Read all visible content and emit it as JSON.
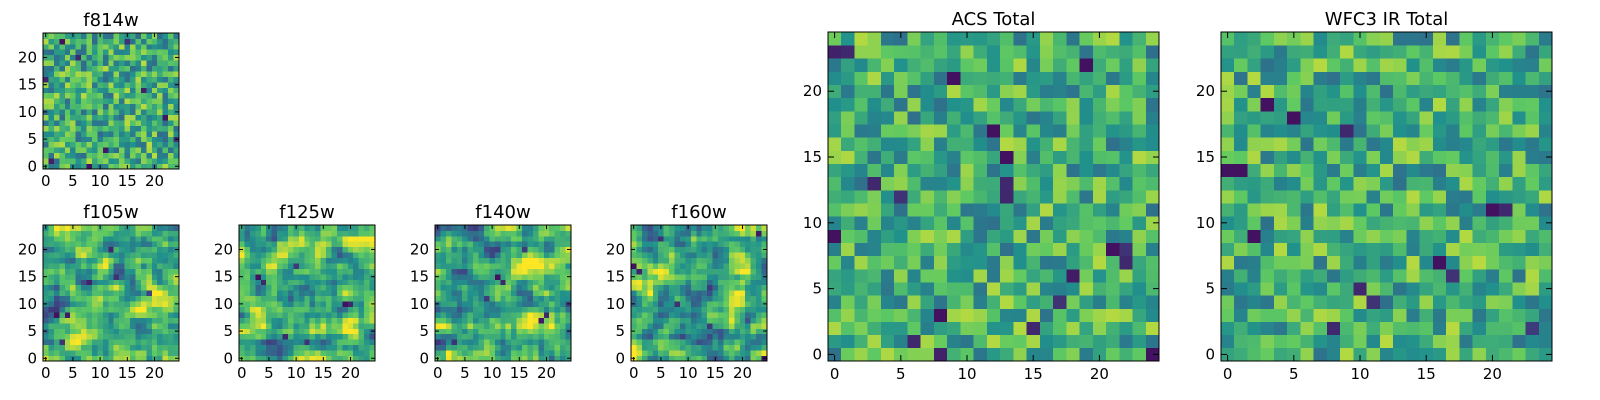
{
  "figure": {
    "background": "#ffffff"
  },
  "colormap": {
    "name": "viridis",
    "stops": [
      "#440154",
      "#3b528b",
      "#21918c",
      "#5ec962",
      "#fde725"
    ]
  },
  "chart_data": [
    {
      "type": "heatmap",
      "title": "f814w",
      "grid_size": [
        25,
        25
      ],
      "xticks": [
        0,
        5,
        10,
        15,
        20
      ],
      "yticks": [
        0,
        5,
        10,
        15,
        20
      ],
      "xlim": [
        -0.5,
        24.5
      ],
      "ylim": [
        -0.5,
        24.5
      ],
      "colormap": "viridis",
      "value_range": [
        0,
        1
      ],
      "texture": "fine noisy pixel field, mostly green/yellow with scattered dark blue/purple pixels",
      "seed": 814,
      "smoothing": 0,
      "mean": 0.62,
      "spread": 0.16,
      "outliers": [
        [
          3,
          23,
          0.05
        ],
        [
          11,
          3,
          0.08
        ],
        [
          18,
          14,
          0.1
        ],
        [
          6,
          20,
          0.12
        ],
        [
          22,
          9,
          0.07
        ],
        [
          1,
          1,
          0.1
        ],
        [
          8,
          0,
          0.05
        ],
        [
          24,
          5,
          0.15
        ],
        [
          15,
          23,
          0.15
        ],
        [
          0,
          16,
          0.12
        ]
      ]
    },
    {
      "type": "heatmap",
      "title": "f105w",
      "grid_size": [
        25,
        25
      ],
      "xticks": [
        0,
        5,
        10,
        15,
        20
      ],
      "yticks": [
        0,
        5,
        10,
        15,
        20
      ],
      "xlim": [
        -0.5,
        24.5
      ],
      "ylim": [
        -0.5,
        24.5
      ],
      "colormap": "viridis",
      "value_range": [
        0,
        1
      ],
      "texture": "smooth blotchy field, yellow-green with teal/purple patches",
      "seed": 105,
      "smoothing": 1,
      "mean": 0.64,
      "spread": 0.16,
      "outliers": [
        [
          2,
          8,
          0.05
        ],
        [
          4,
          8,
          0.08
        ],
        [
          8,
          14,
          0.1
        ],
        [
          13,
          15,
          0.15
        ],
        [
          3,
          3,
          0.15
        ],
        [
          19,
          12,
          0.2
        ],
        [
          12,
          20,
          0.12
        ]
      ]
    },
    {
      "type": "heatmap",
      "title": "f125w",
      "grid_size": [
        25,
        25
      ],
      "xticks": [
        0,
        5,
        10,
        15,
        20
      ],
      "yticks": [
        0,
        5,
        10,
        15,
        20
      ],
      "xlim": [
        -0.5,
        24.5
      ],
      "ylim": [
        -0.5,
        24.5
      ],
      "colormap": "viridis",
      "value_range": [
        0,
        1
      ],
      "texture": "smooth blotchy field with dark spots around (3,15) and (19,10)",
      "seed": 125,
      "smoothing": 1,
      "mean": 0.64,
      "spread": 0.16,
      "outliers": [
        [
          3,
          15,
          0.05
        ],
        [
          4,
          14,
          0.12
        ],
        [
          19,
          10,
          0.05
        ],
        [
          20,
          10,
          0.12
        ],
        [
          8,
          4,
          0.12
        ],
        [
          12,
          3,
          0.15
        ],
        [
          10,
          17,
          0.18
        ]
      ]
    },
    {
      "type": "heatmap",
      "title": "f140w",
      "grid_size": [
        25,
        25
      ],
      "xticks": [
        0,
        5,
        10,
        15,
        20
      ],
      "yticks": [
        0,
        5,
        10,
        15,
        20
      ],
      "xlim": [
        -0.5,
        24.5
      ],
      "ylim": [
        -0.5,
        24.5
      ],
      "colormap": "viridis",
      "value_range": [
        0,
        1
      ],
      "texture": "smooth field with dark cores near (11,15) and (19,7)",
      "seed": 140,
      "smoothing": 1,
      "mean": 0.62,
      "spread": 0.17,
      "outliers": [
        [
          11,
          15,
          0.05
        ],
        [
          12,
          14,
          0.12
        ],
        [
          19,
          7,
          0.08
        ],
        [
          20,
          8,
          0.12
        ],
        [
          3,
          3,
          0.15
        ],
        [
          9,
          11,
          0.18
        ],
        [
          16,
          20,
          0.18
        ]
      ]
    },
    {
      "type": "heatmap",
      "title": "f160w",
      "grid_size": [
        25,
        25
      ],
      "xticks": [
        0,
        5,
        10,
        15,
        20
      ],
      "yticks": [
        0,
        5,
        10,
        15,
        20
      ],
      "xlim": [
        -0.5,
        24.5
      ],
      "ylim": [
        -0.5,
        24.5
      ],
      "colormap": "viridis",
      "value_range": [
        0,
        1
      ],
      "texture": "smooth mottled field, dark edge pixels at corners",
      "seed": 160,
      "smoothing": 1,
      "mean": 0.6,
      "spread": 0.17,
      "outliers": [
        [
          0,
          17,
          0.05
        ],
        [
          1,
          16,
          0.1
        ],
        [
          24,
          0,
          0.05
        ],
        [
          23,
          23,
          0.08
        ],
        [
          8,
          10,
          0.15
        ],
        [
          14,
          6,
          0.18
        ],
        [
          5,
          22,
          0.15
        ]
      ]
    },
    {
      "type": "heatmap",
      "title": "ACS Total",
      "grid_size": [
        25,
        25
      ],
      "xticks": [
        0,
        5,
        10,
        15,
        20
      ],
      "yticks": [
        0,
        5,
        10,
        15,
        20
      ],
      "xlim": [
        -0.5,
        24.5
      ],
      "ylim": [
        -0.5,
        24.5
      ],
      "colormap": "viridis",
      "value_range": [
        0,
        1
      ],
      "texture": "coarse noisy pixel field, green/yellow with scattered dark pixels",
      "seed": 2001,
      "smoothing": 0,
      "mean": 0.63,
      "spread": 0.15,
      "outliers": [
        [
          0,
          23,
          0.1
        ],
        [
          1,
          23,
          0.12
        ],
        [
          9,
          21,
          0.05
        ],
        [
          19,
          22,
          0.05
        ],
        [
          12,
          17,
          0.05
        ],
        [
          13,
          15,
          0.05
        ],
        [
          3,
          13,
          0.12
        ],
        [
          13,
          13,
          0.12
        ],
        [
          13,
          12,
          0.12
        ],
        [
          0,
          9,
          0.05
        ],
        [
          21,
          8,
          0.05
        ],
        [
          22,
          8,
          0.15
        ],
        [
          22,
          7,
          0.12
        ],
        [
          8,
          3,
          0.05
        ],
        [
          8,
          0,
          0.1
        ],
        [
          24,
          0,
          0.05
        ],
        [
          18,
          6,
          0.08
        ],
        [
          6,
          1,
          0.12
        ],
        [
          15,
          2,
          0.12
        ],
        [
          17,
          4,
          0.15
        ],
        [
          5,
          12,
          0.15
        ]
      ]
    },
    {
      "type": "heatmap",
      "title": "WFC3 IR Total",
      "grid_size": [
        25,
        25
      ],
      "xticks": [
        0,
        5,
        10,
        15,
        20
      ],
      "yticks": [
        0,
        5,
        10,
        15,
        20
      ],
      "xlim": [
        -0.5,
        24.5
      ],
      "ylim": [
        -0.5,
        24.5
      ],
      "colormap": "viridis",
      "value_range": [
        0,
        1
      ],
      "texture": "coarse noisy pixel field, yellow/green with scattered dark pixels",
      "seed": 3001,
      "smoothing": 0,
      "mean": 0.63,
      "spread": 0.15,
      "outliers": [
        [
          3,
          19,
          0.05
        ],
        [
          5,
          18,
          0.05
        ],
        [
          0,
          14,
          0.05
        ],
        [
          1,
          14,
          0.05
        ],
        [
          2,
          9,
          0.05
        ],
        [
          16,
          7,
          0.05
        ],
        [
          20,
          11,
          0.05
        ],
        [
          21,
          11,
          0.12
        ],
        [
          10,
          5,
          0.12
        ],
        [
          11,
          4,
          0.15
        ],
        [
          8,
          2,
          0.12
        ],
        [
          17,
          6,
          0.15
        ],
        [
          9,
          17,
          0.12
        ],
        [
          23,
          2,
          0.18
        ]
      ]
    }
  ]
}
